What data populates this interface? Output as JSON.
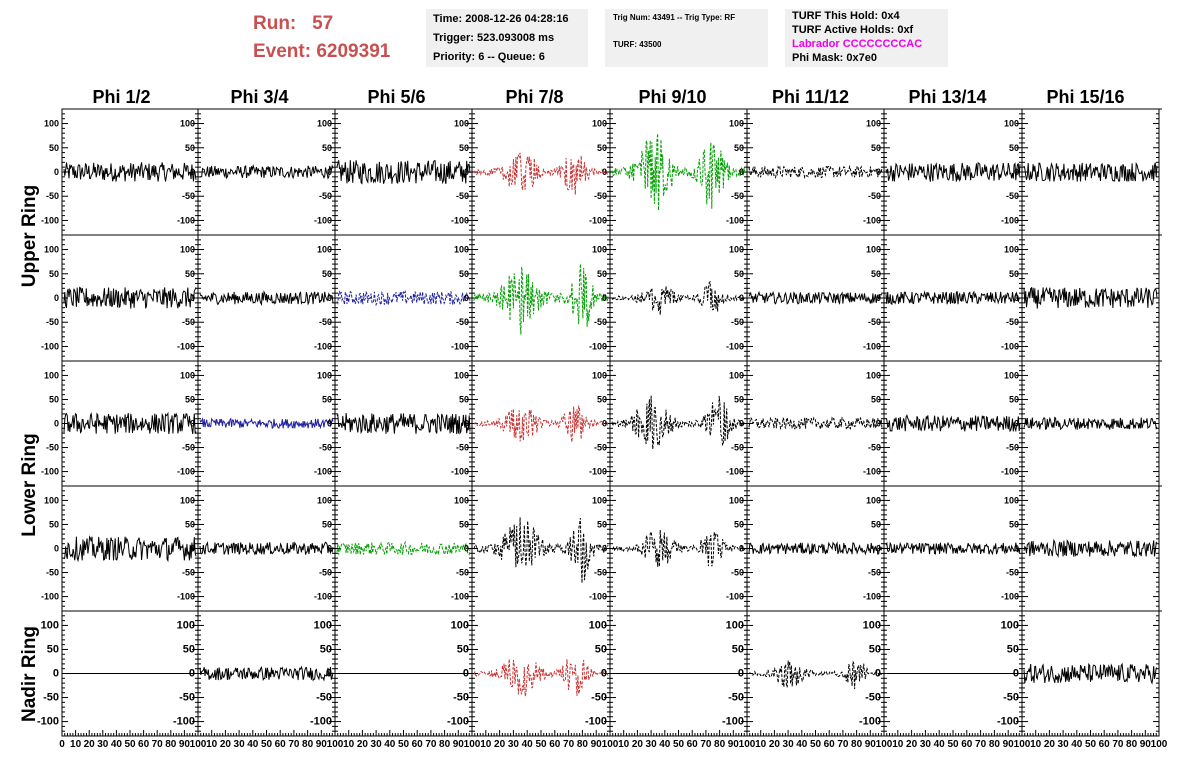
{
  "header": {
    "run_label": "Run:",
    "run_value": "57",
    "event_label": "Event:",
    "event_value": "6209391",
    "time": "Time: 2008-12-26 04:28:16",
    "trigger": "Trigger: 523.093008 ms",
    "priority": "Priority: 6 -- Queue: 6",
    "trig_num": "Trig Num: 43491 -- Trig Type: RF",
    "turf": "TURF: 43500",
    "turf_hold": "TURF This Hold: 0x4",
    "turf_active": "TURF Active Holds: 0xf",
    "labrador": "Labrador CCCCCCCCAC",
    "phi_mask": "Phi Mask: 0x7e0"
  },
  "colors": {
    "run_text": "#c85050",
    "labrador_text": "#ee00ee",
    "red_trace": "#c83232",
    "green_trace": "#00a000",
    "blue_trace": "#2020a0",
    "black_trace": "#000000",
    "box_bg": "#f0f0f0"
  },
  "chart_data": {
    "type": "line",
    "columns": [
      "Phi 1/2",
      "Phi 3/4",
      "Phi 5/6",
      "Phi 7/8",
      "Phi 9/10",
      "Phi 11/12",
      "Phi 13/14",
      "Phi 15/16"
    ],
    "rows": [
      "Upper Ring",
      "Upper Ring",
      "Lower Ring",
      "Lower Ring",
      "Nadir Ring"
    ],
    "row_labels": [
      "Upper Ring",
      "Lower Ring",
      "Nadir Ring"
    ],
    "ylim": [
      -130,
      130
    ],
    "xlim": [
      0,
      100
    ],
    "yticks": [
      -100,
      -50,
      0,
      50,
      100
    ],
    "xtick_labels": [
      "0",
      "10",
      "20",
      "30",
      "40",
      "50",
      "60",
      "70",
      "80",
      "90",
      "100"
    ],
    "panels": [
      [
        {
          "color": "black",
          "style": "solid",
          "amp": 20
        },
        {
          "color": "black",
          "style": "solid",
          "amp": 13
        },
        {
          "color": "black",
          "style": "solid",
          "amp": 25
        },
        {
          "color": "red",
          "style": "dashed",
          "amp": 45,
          "burst": [
            [
              0.35,
              0.2
            ],
            [
              0.75,
              0.14
            ]
          ]
        },
        {
          "color": "green",
          "style": "dashed",
          "amp": 75,
          "burst": [
            [
              0.32,
              0.2
            ],
            [
              0.75,
              0.14
            ]
          ]
        },
        {
          "color": "black",
          "style": "dashed",
          "amp": 12
        },
        {
          "color": "black",
          "style": "solid",
          "amp": 20
        },
        {
          "color": "black",
          "style": "solid",
          "amp": 20
        }
      ],
      [
        {
          "color": "black",
          "style": "solid",
          "amp": 22
        },
        {
          "color": "black",
          "style": "solid",
          "amp": 13
        },
        {
          "color": "blue",
          "style": "dashed",
          "amp": 14
        },
        {
          "color": "green",
          "style": "dashed",
          "amp": 75,
          "burst": [
            [
              0.35,
              0.2
            ],
            [
              0.8,
              0.12
            ]
          ]
        },
        {
          "color": "black",
          "style": "dashed",
          "amp": 32,
          "burst": [
            [
              0.35,
              0.2
            ],
            [
              0.75,
              0.14
            ]
          ]
        },
        {
          "color": "black",
          "style": "solid",
          "amp": 12
        },
        {
          "color": "black",
          "style": "solid",
          "amp": 13
        },
        {
          "color": "black",
          "style": "solid",
          "amp": 22
        }
      ],
      [
        {
          "color": "black",
          "style": "solid",
          "amp": 22
        },
        {
          "color": "blue",
          "style": "solid",
          "amp": 10
        },
        {
          "color": "black",
          "style": "solid",
          "amp": 22
        },
        {
          "color": "red",
          "style": "dashed",
          "amp": 40,
          "burst": [
            [
              0.35,
              0.2
            ],
            [
              0.75,
              0.14
            ]
          ]
        },
        {
          "color": "black",
          "style": "dashed",
          "amp": 55,
          "burst": [
            [
              0.3,
              0.2
            ],
            [
              0.8,
              0.14
            ]
          ]
        },
        {
          "color": "black",
          "style": "dashed",
          "amp": 12
        },
        {
          "color": "black",
          "style": "solid",
          "amp": 17
        },
        {
          "color": "black",
          "style": "solid",
          "amp": 13
        }
      ],
      [
        {
          "color": "black",
          "style": "solid",
          "amp": 25
        },
        {
          "color": "black",
          "style": "solid",
          "amp": 13
        },
        {
          "color": "green",
          "style": "dashed",
          "amp": 13
        },
        {
          "color": "black",
          "style": "dashed",
          "amp": 70,
          "burst": [
            [
              0.35,
              0.2
            ],
            [
              0.8,
              0.12
            ]
          ]
        },
        {
          "color": "black",
          "style": "dashed",
          "amp": 38,
          "burst": [
            [
              0.35,
              0.2
            ],
            [
              0.75,
              0.14
            ]
          ]
        },
        {
          "color": "black",
          "style": "solid",
          "amp": 12
        },
        {
          "color": "black",
          "style": "solid",
          "amp": 12
        },
        {
          "color": "black",
          "style": "solid",
          "amp": 17
        }
      ],
      [
        {
          "color": "black",
          "style": "flat",
          "amp": 0
        },
        {
          "color": "black",
          "style": "solid",
          "amp": 14
        },
        {
          "color": "black",
          "style": "flat",
          "amp": 0
        },
        {
          "color": "red",
          "style": "dashed",
          "amp": 45,
          "burst": [
            [
              0.35,
              0.2
            ],
            [
              0.75,
              0.14
            ]
          ]
        },
        {
          "color": "black",
          "style": "flat",
          "amp": 0
        },
        {
          "color": "black",
          "style": "dashed",
          "amp": 30,
          "burst": [
            [
              0.3,
              0.18
            ],
            [
              0.8,
              0.14
            ]
          ]
        },
        {
          "color": "black",
          "style": "flat",
          "amp": 0
        },
        {
          "color": "black",
          "style": "solid",
          "amp": 20
        }
      ]
    ]
  }
}
